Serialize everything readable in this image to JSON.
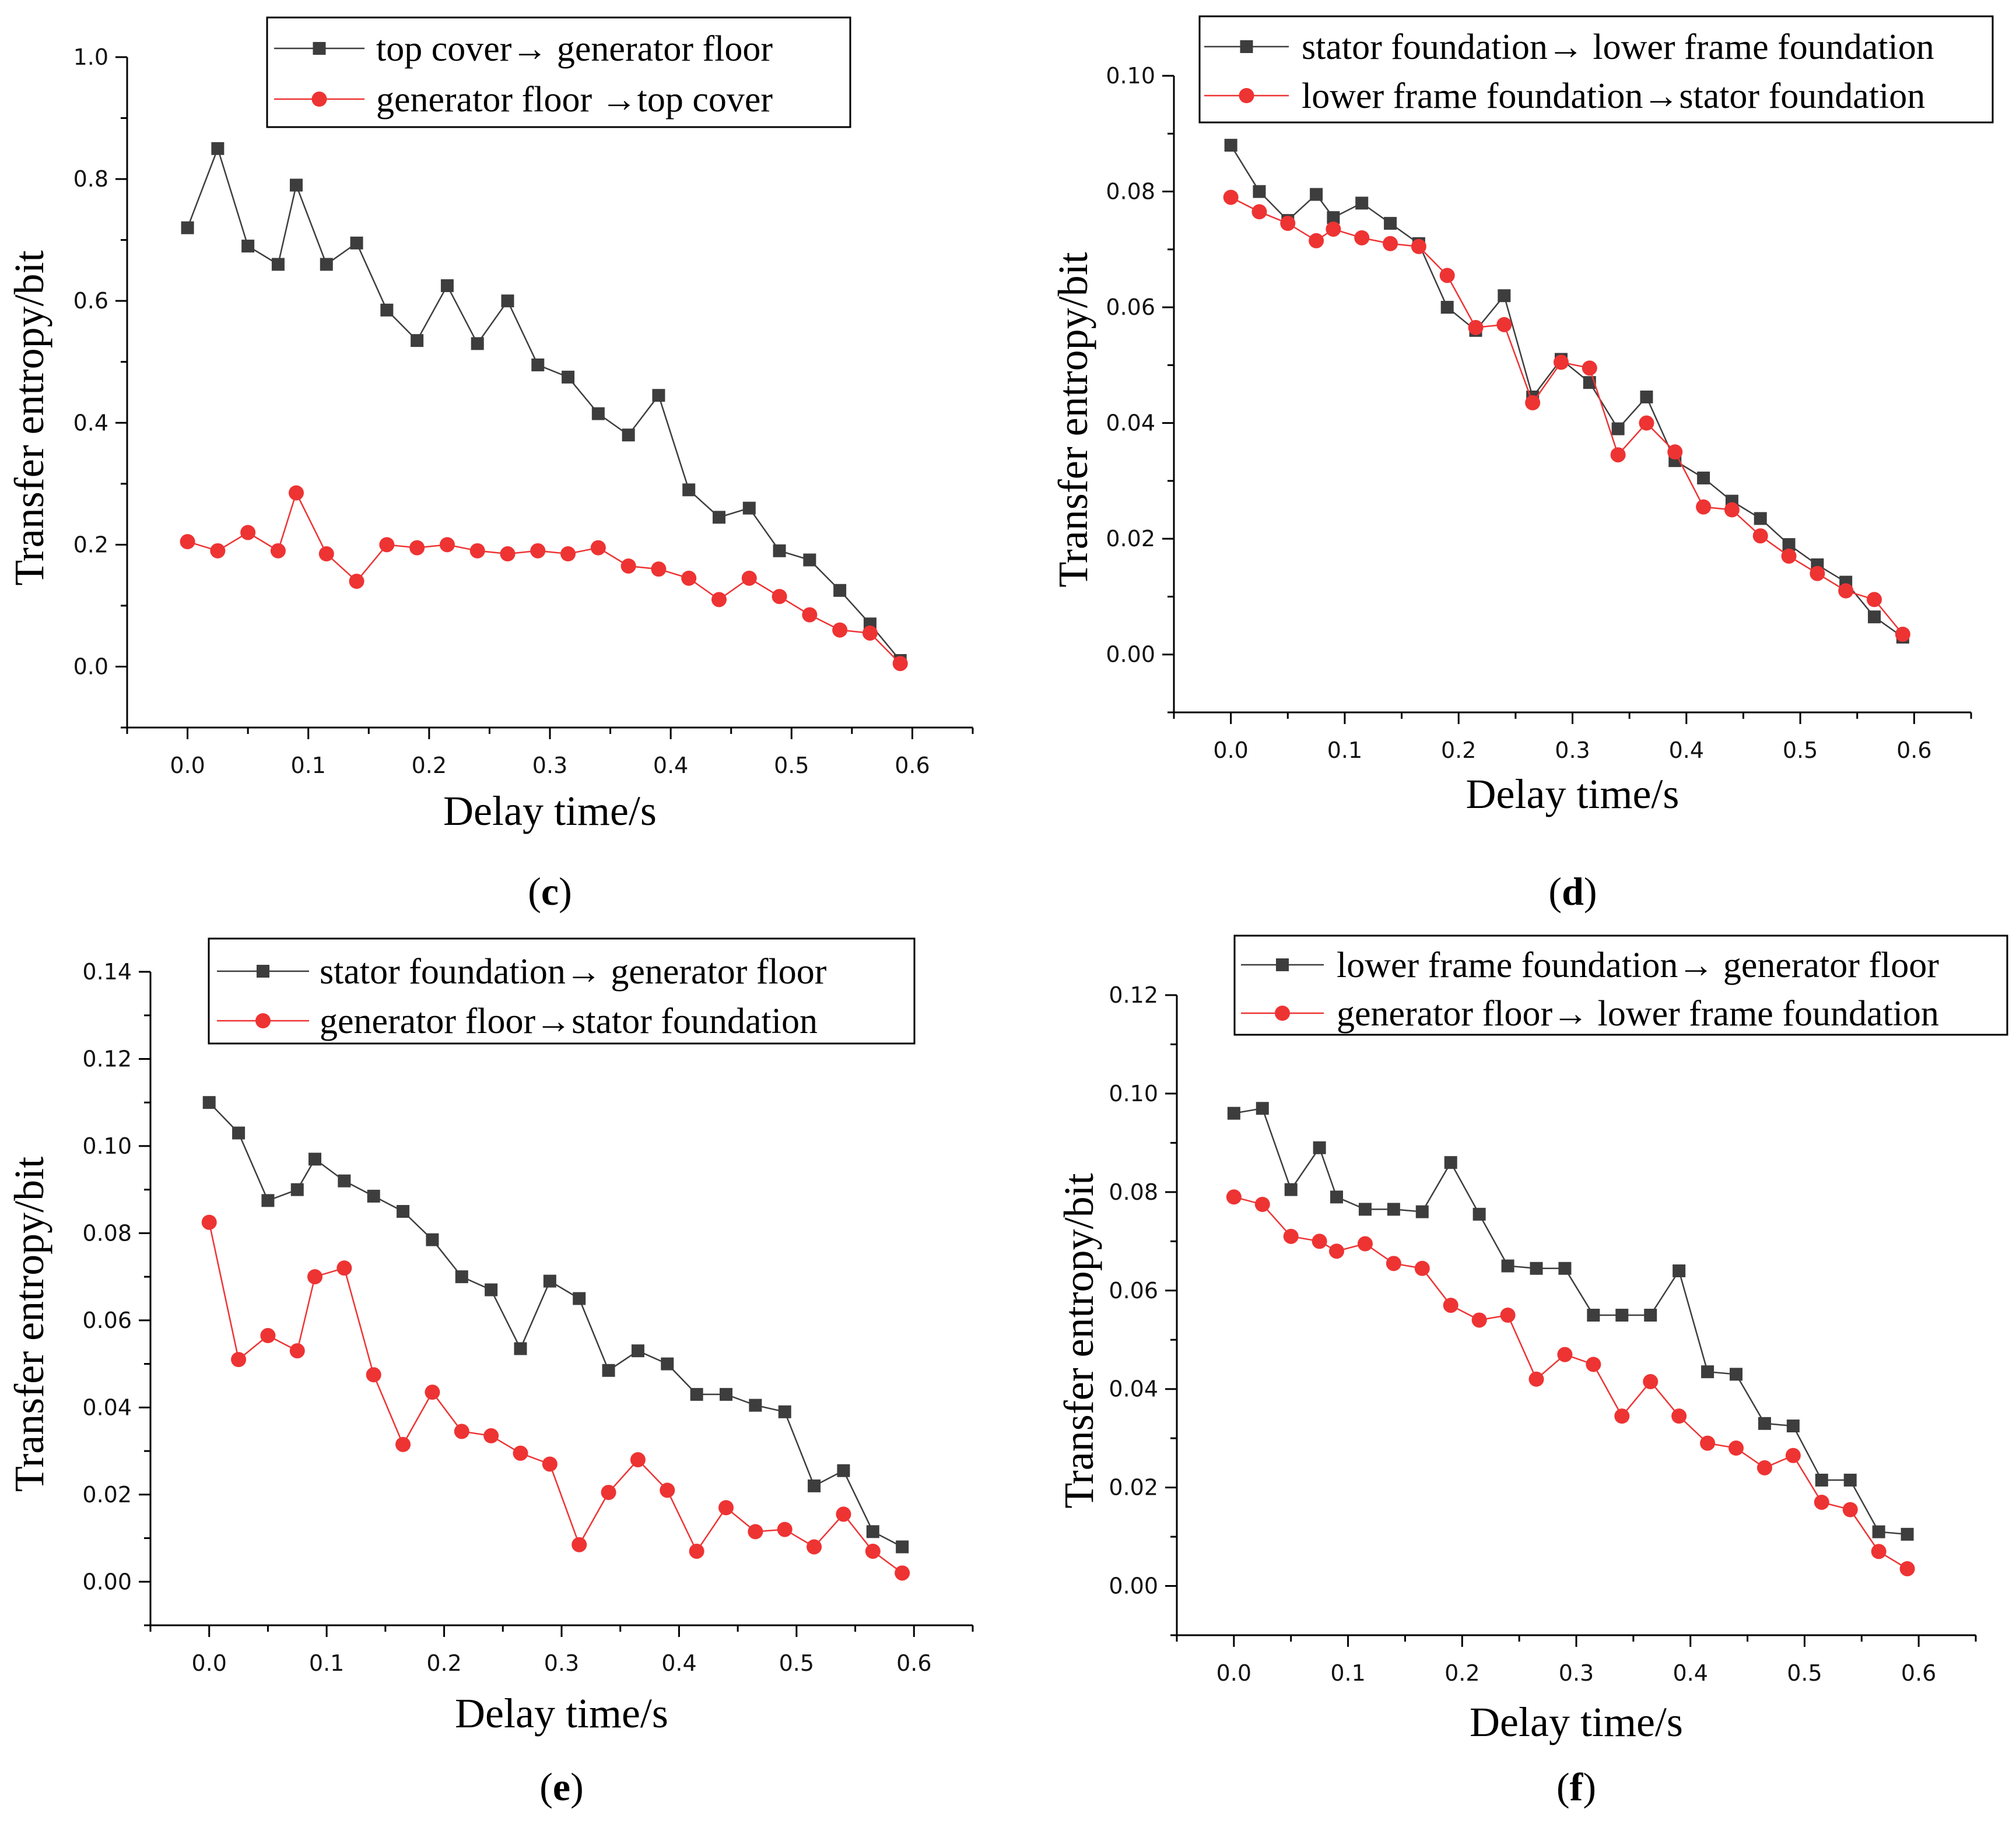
{
  "chart_data": [
    {
      "type": "line",
      "label": "(c)",
      "label_letter": "c",
      "xlabel": "Delay time/s",
      "ylabel": "Transfer entropy/bit",
      "xlim": [
        -0.05,
        0.65
      ],
      "ylim": [
        -0.1,
        1.0
      ],
      "xticks": [
        0.0,
        0.1,
        0.2,
        0.3,
        0.4,
        0.5,
        0.6
      ],
      "xtick_labels": [
        "0.0",
        "0.1",
        "0.2",
        "0.3",
        "0.4",
        "0.5",
        "0.6"
      ],
      "yticks": [
        0.0,
        0.2,
        0.4,
        0.6,
        0.8,
        1.0
      ],
      "ytick_labels": [
        "0.0",
        "0.2",
        "0.4",
        "0.6",
        "0.8",
        "1.0"
      ],
      "x": [
        0.0,
        0.025,
        0.05,
        0.075,
        0.09,
        0.115,
        0.14,
        0.165,
        0.19,
        0.215,
        0.24,
        0.265,
        0.29,
        0.315,
        0.34,
        0.365,
        0.39,
        0.415,
        0.44,
        0.465,
        0.49,
        0.515,
        0.54,
        0.565,
        0.59
      ],
      "legend_position": "top-right",
      "series": [
        {
          "name": "top cover→ generator floor",
          "color": "#3d3d3d",
          "marker": "square",
          "values": [
            0.72,
            0.85,
            0.69,
            0.66,
            0.79,
            0.66,
            0.695,
            0.585,
            0.535,
            0.625,
            0.53,
            0.6,
            0.495,
            0.475,
            0.415,
            0.38,
            0.445,
            0.29,
            0.245,
            0.26,
            0.19,
            0.175,
            0.125,
            0.07,
            0.01
          ]
        },
        {
          "name": "generator floor →top cover",
          "color": "#ee3333",
          "marker": "circle",
          "values": [
            0.205,
            0.19,
            0.22,
            0.19,
            0.285,
            0.185,
            0.14,
            0.2,
            0.195,
            0.2,
            0.19,
            0.185,
            0.19,
            0.185,
            0.195,
            0.165,
            0.16,
            0.145,
            0.11,
            0.145,
            0.115,
            0.085,
            0.06,
            0.055,
            0.005
          ]
        }
      ]
    },
    {
      "type": "line",
      "label": "(d)",
      "label_letter": "d",
      "xlabel": "Delay time/s",
      "ylabel": "Transfer entropy/bit",
      "xlim": [
        -0.05,
        0.65
      ],
      "ylim": [
        -0.01,
        0.1
      ],
      "xticks": [
        0.0,
        0.1,
        0.2,
        0.3,
        0.4,
        0.5,
        0.6
      ],
      "xtick_labels": [
        "0.0",
        "0.1",
        "0.2",
        "0.3",
        "0.4",
        "0.5",
        "0.6"
      ],
      "yticks": [
        0.0,
        0.02,
        0.04,
        0.06,
        0.08,
        0.1
      ],
      "ytick_labels": [
        "0.00",
        "0.02",
        "0.04",
        "0.06",
        "0.08",
        "0.10"
      ],
      "x": [
        0.0,
        0.025,
        0.05,
        0.075,
        0.09,
        0.115,
        0.14,
        0.165,
        0.19,
        0.215,
        0.24,
        0.265,
        0.29,
        0.315,
        0.34,
        0.365,
        0.39,
        0.415,
        0.44,
        0.465,
        0.49,
        0.515,
        0.54,
        0.565,
        0.59
      ],
      "legend_position": "top-right",
      "series": [
        {
          "name": "stator foundation→ lower frame foundation",
          "color": "#3d3d3d",
          "marker": "square",
          "values": [
            0.088,
            0.08,
            0.075,
            0.0795,
            0.0755,
            0.078,
            0.0745,
            0.071,
            0.06,
            0.056,
            0.062,
            0.0445,
            0.051,
            0.047,
            0.039,
            0.0445,
            0.0335,
            0.0305,
            0.0265,
            0.0235,
            0.019,
            0.0155,
            0.0125,
            0.0065,
            0.003
          ]
        },
        {
          "name": "lower frame foundation→stator foundation",
          "color": "#ee3333",
          "marker": "circle",
          "values": [
            0.079,
            0.0765,
            0.0745,
            0.0715,
            0.0735,
            0.072,
            0.071,
            0.0705,
            0.0655,
            0.0565,
            0.057,
            0.0435,
            0.0505,
            0.0495,
            0.0345,
            0.04,
            0.035,
            0.0255,
            0.025,
            0.0205,
            0.017,
            0.014,
            0.011,
            0.0095,
            0.0035
          ]
        }
      ]
    },
    {
      "type": "line",
      "label": "(e)",
      "label_letter": "e",
      "xlabel": "Delay time/s",
      "ylabel": "Transfer entropy/bit",
      "xlim": [
        -0.05,
        0.65
      ],
      "ylim": [
        -0.01,
        0.14
      ],
      "xticks": [
        0.0,
        0.1,
        0.2,
        0.3,
        0.4,
        0.5,
        0.6
      ],
      "xtick_labels": [
        "0.0",
        "0.1",
        "0.2",
        "0.3",
        "0.4",
        "0.5",
        "0.6"
      ],
      "yticks": [
        0.0,
        0.02,
        0.04,
        0.06,
        0.08,
        0.1,
        0.12,
        0.14
      ],
      "ytick_labels": [
        "0.00",
        "0.02",
        "0.04",
        "0.06",
        "0.08",
        "0.10",
        "0.12",
        "0.14"
      ],
      "x": [
        0.0,
        0.025,
        0.05,
        0.075,
        0.09,
        0.115,
        0.14,
        0.165,
        0.19,
        0.215,
        0.24,
        0.265,
        0.29,
        0.315,
        0.34,
        0.365,
        0.39,
        0.415,
        0.44,
        0.465,
        0.49,
        0.515,
        0.54,
        0.565,
        0.59
      ],
      "legend_position": "top-right",
      "series": [
        {
          "name": "stator foundation→ generator floor",
          "color": "#3d3d3d",
          "marker": "square",
          "values": [
            0.11,
            0.103,
            0.0875,
            0.09,
            0.097,
            0.092,
            0.0885,
            0.085,
            0.0785,
            0.07,
            0.067,
            0.0535,
            0.069,
            0.065,
            0.0485,
            0.053,
            0.05,
            0.043,
            0.043,
            0.0405,
            0.039,
            0.022,
            0.0255,
            0.0115,
            0.008
          ]
        },
        {
          "name": "generator floor→stator foundation",
          "color": "#ee3333",
          "marker": "circle",
          "values": [
            0.0825,
            0.051,
            0.0565,
            0.053,
            0.07,
            0.072,
            0.0475,
            0.0315,
            0.0435,
            0.0345,
            0.0335,
            0.0295,
            0.027,
            0.0085,
            0.0205,
            0.028,
            0.021,
            0.007,
            0.017,
            0.0115,
            0.012,
            0.008,
            0.0155,
            0.007,
            0.002
          ]
        }
      ]
    },
    {
      "type": "line",
      "label": "(f)",
      "label_letter": "f",
      "xlabel": "Delay time/s",
      "ylabel": "Transfer entropy/bit",
      "xlim": [
        -0.05,
        0.65
      ],
      "ylim": [
        -0.01,
        0.12
      ],
      "xticks": [
        0.0,
        0.1,
        0.2,
        0.3,
        0.4,
        0.5,
        0.6
      ],
      "xtick_labels": [
        "0.0",
        "0.1",
        "0.2",
        "0.3",
        "0.4",
        "0.5",
        "0.6"
      ],
      "yticks": [
        0.0,
        0.02,
        0.04,
        0.06,
        0.08,
        0.1,
        0.12
      ],
      "ytick_labels": [
        "0.00",
        "0.02",
        "0.04",
        "0.06",
        "0.08",
        "0.10",
        "0.12"
      ],
      "x": [
        0.0,
        0.025,
        0.05,
        0.075,
        0.09,
        0.115,
        0.14,
        0.165,
        0.19,
        0.215,
        0.24,
        0.265,
        0.29,
        0.315,
        0.34,
        0.365,
        0.39,
        0.415,
        0.44,
        0.465,
        0.49,
        0.515,
        0.54,
        0.565,
        0.59
      ],
      "legend_position": "top-right",
      "series": [
        {
          "name": "lower frame foundation→ generator floor",
          "color": "#3d3d3d",
          "marker": "square",
          "values": [
            0.096,
            0.097,
            0.0805,
            0.089,
            0.079,
            0.0765,
            0.0765,
            0.076,
            0.086,
            0.0755,
            0.065,
            0.0645,
            0.0645,
            0.055,
            0.055,
            0.055,
            0.064,
            0.0435,
            0.043,
            0.033,
            0.0325,
            0.0215,
            0.0215,
            0.011,
            0.0105
          ]
        },
        {
          "name": "generator floor→ lower frame foundation",
          "color": "#ee3333",
          "marker": "circle",
          "values": [
            0.079,
            0.0775,
            0.071,
            0.07,
            0.068,
            0.0695,
            0.0655,
            0.0645,
            0.057,
            0.054,
            0.055,
            0.042,
            0.047,
            0.045,
            0.0345,
            0.0415,
            0.0345,
            0.029,
            0.028,
            0.024,
            0.0265,
            0.017,
            0.0155,
            0.007,
            0.0035
          ]
        }
      ]
    }
  ]
}
